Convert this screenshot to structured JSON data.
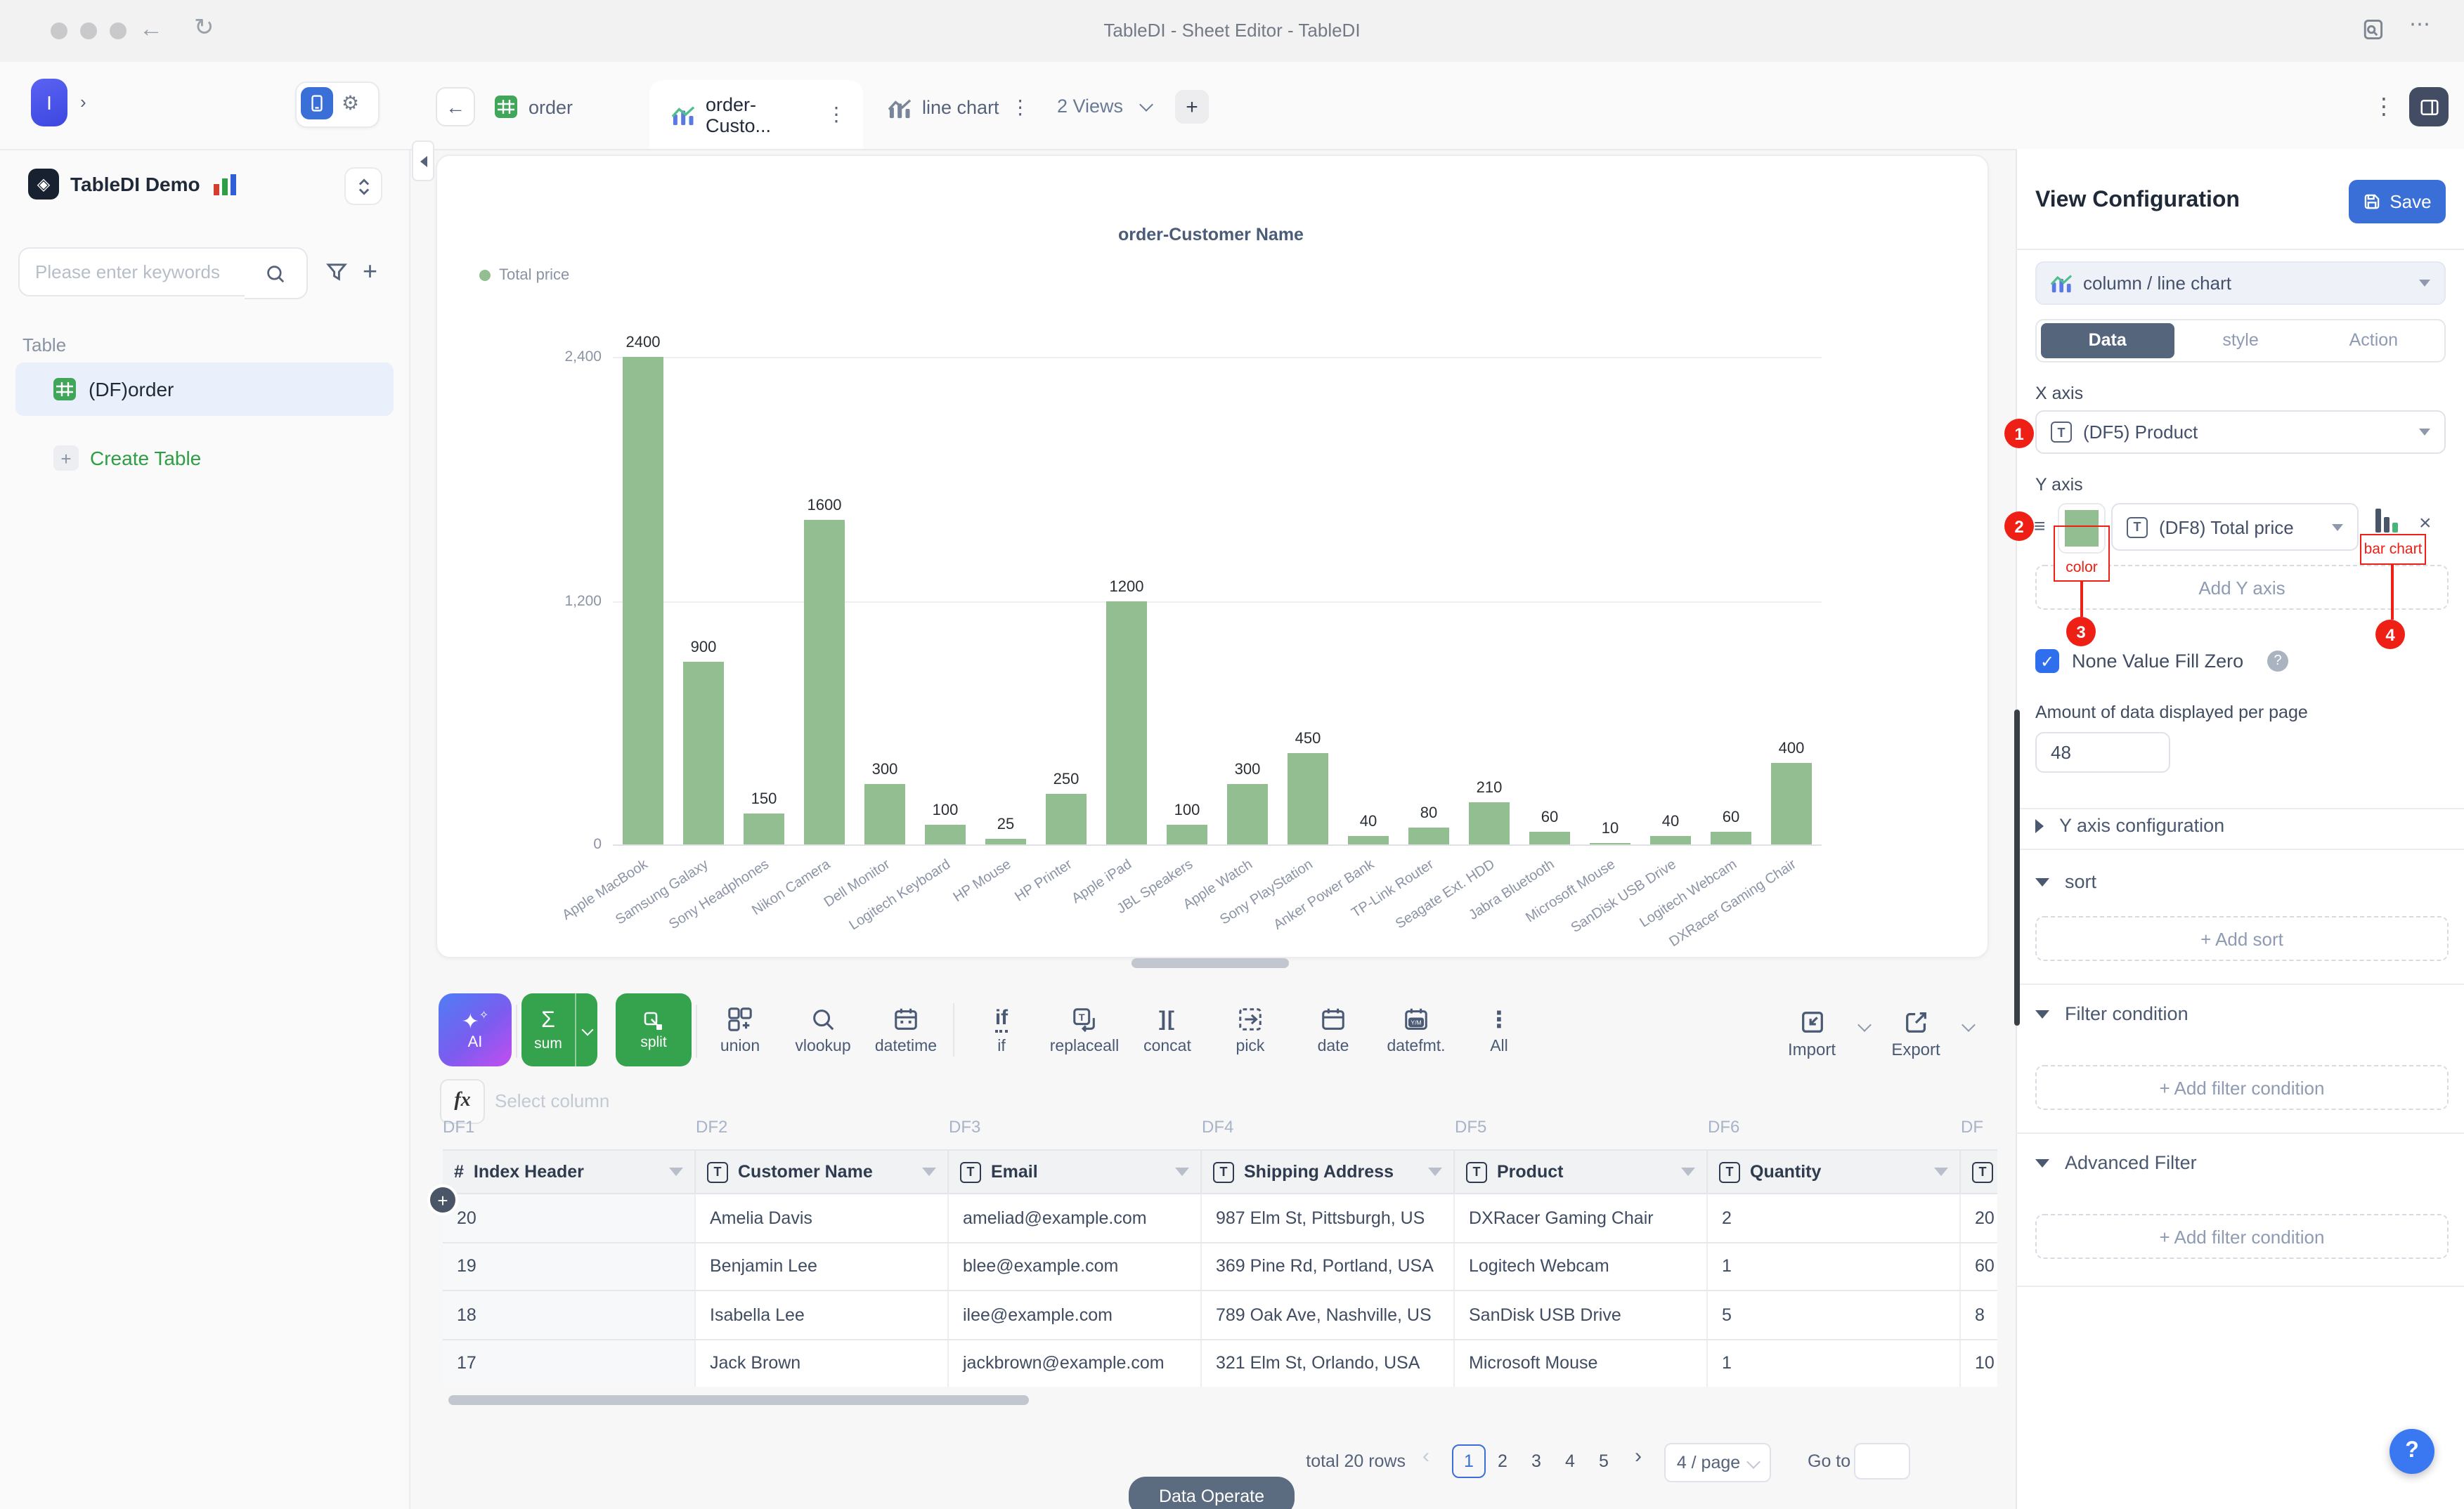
{
  "window": {
    "title": "TableDI - Sheet Editor - TableDI"
  },
  "sidebar": {
    "logo_letter": "I",
    "workspace_name": "TableDI Demo",
    "search_placeholder": "Please enter keywords",
    "section_label": "Table",
    "table_item": "(DF)order",
    "create_table": "Create Table"
  },
  "tabbar": {
    "tabs": [
      {
        "label": "order",
        "icon": "table-green-icon",
        "active": false
      },
      {
        "label": "order-Custo...",
        "icon": "chart-color-icon",
        "active": true
      },
      {
        "label": "line chart",
        "icon": "chart-gray-icon",
        "active": false
      }
    ],
    "views_label": "2 Views",
    "add_label": "+"
  },
  "chart_data": {
    "type": "bar",
    "title": "order-Customer Name",
    "legend": "Total price",
    "categories": [
      "Apple MacBook",
      "Samsung Galaxy",
      "Sony Headphones",
      "Nikon Camera",
      "Dell Monitor",
      "Logitech Keyboard",
      "HP Mouse",
      "HP Printer",
      "Apple iPad",
      "JBL Speakers",
      "Apple Watch",
      "Sony PlayStation",
      "Anker Power Bank",
      "TP-Link Router",
      "Seagate Ext. HDD",
      "Jabra Bluetooth",
      "Microsoft Mouse",
      "SanDisk USB Drive",
      "Logitech Webcam",
      "DXRacer Gaming Chair"
    ],
    "values": [
      2400,
      900,
      150,
      1600,
      300,
      100,
      25,
      250,
      1200,
      100,
      300,
      450,
      40,
      80,
      210,
      60,
      10,
      40,
      60,
      400
    ],
    "xlabel": "",
    "ylabel": "",
    "ylim": [
      0,
      2400
    ],
    "yticks": [
      {
        "label": "2,400",
        "value": 2400
      },
      {
        "label": "1,200",
        "value": 1200
      },
      {
        "label": "0",
        "value": 0
      }
    ],
    "bar_color": "#92be92",
    "grid": true,
    "legend_position": "top-left"
  },
  "toolbar": {
    "ai_label": "AI",
    "sum_label": "sum",
    "split_label": "split",
    "items": [
      {
        "icon": "union-icon",
        "label": "union"
      },
      {
        "icon": "vlookup-icon",
        "label": "vlookup"
      },
      {
        "icon": "datetime-icon",
        "label": "datetime"
      },
      {
        "sep": true
      },
      {
        "icon": "if-icon",
        "label": "if"
      },
      {
        "icon": "replaceall-icon",
        "label": "replaceall"
      },
      {
        "icon": "concat-icon",
        "label": "concat"
      },
      {
        "icon": "pick-icon",
        "label": "pick"
      },
      {
        "icon": "date-icon",
        "label": "date"
      },
      {
        "icon": "datefmt-icon",
        "label": "datefmt."
      },
      {
        "icon": "all-icon",
        "label": "All"
      }
    ],
    "import_label": "Import",
    "export_label": "Export"
  },
  "formula_bar": {
    "fx": "fx",
    "placeholder": "Select column"
  },
  "data_table": {
    "df_labels": [
      "DF1",
      "DF2",
      "DF3",
      "DF4",
      "DF5",
      "DF6",
      "DF"
    ],
    "columns": [
      {
        "icon": "#",
        "label": "Index Header"
      },
      {
        "icon": "T",
        "label": "Customer Name"
      },
      {
        "icon": "T",
        "label": "Email"
      },
      {
        "icon": "T",
        "label": "Shipping Address"
      },
      {
        "icon": "T",
        "label": "Product"
      },
      {
        "icon": "T",
        "label": "Quantity"
      },
      {
        "icon": "T",
        "label": ""
      }
    ],
    "rows": [
      [
        "20",
        "Amelia Davis",
        "ameliad@example.com",
        "987 Elm St, Pittsburgh, US",
        "DXRacer Gaming Chair",
        "2",
        "20"
      ],
      [
        "19",
        "Benjamin Lee",
        "blee@example.com",
        "369 Pine Rd, Portland, USA",
        "Logitech Webcam",
        "1",
        "60"
      ],
      [
        "18",
        "Isabella Lee",
        "ilee@example.com",
        "789 Oak Ave, Nashville, US",
        "SanDisk USB Drive",
        "5",
        "8"
      ],
      [
        "17",
        "Jack Brown",
        "jackbrown@example.com",
        "321 Elm St, Orlando, USA",
        "Microsoft Mouse",
        "1",
        "10"
      ]
    ]
  },
  "pagination": {
    "total_label": "total 20 rows",
    "pages": [
      "1",
      "2",
      "3",
      "4",
      "5"
    ],
    "active_page": "1",
    "per_page": "4 / page",
    "goto_label": "Go to"
  },
  "footer": {
    "data_operate": "Data Operate"
  },
  "config_panel": {
    "title": "View Configuration",
    "save_label": "Save",
    "chart_type": "column / line chart",
    "tabs": [
      "Data",
      "style",
      "Action"
    ],
    "active_tab": "Data",
    "x_axis_label": "X axis",
    "x_axis_value": "(DF5) Product",
    "y_axis_label": "Y axis",
    "y_axis_value": "(DF8) Total price",
    "add_y_axis": "Add Y axis",
    "none_value_fill_zero": "None Value Fill Zero",
    "none_value_checked": true,
    "amount_label": "Amount of data displayed per page",
    "amount_value": "48",
    "sections": [
      {
        "label": "Y axis configuration",
        "collapsed": true,
        "button": ""
      },
      {
        "label": "sort",
        "collapsed": false,
        "button": "+ Add sort"
      },
      {
        "label": "Filter condition",
        "collapsed": false,
        "button": "+ Add filter condition"
      },
      {
        "label": "Advanced Filter",
        "collapsed": false,
        "button": "+ Add filter condition"
      }
    ]
  },
  "annotations": {
    "badge_1": "1",
    "badge_2": "2",
    "badge_3": "3",
    "badge_4": "4",
    "color_label": "color",
    "bar_chart_label": "bar chart"
  },
  "help_label": "?",
  "colors": {
    "bar_green": "#92be92",
    "accent_blue": "#3a6fd8",
    "button_green": "#35a24d",
    "annotation_red": "#ee2015",
    "slate": "#55657c"
  }
}
